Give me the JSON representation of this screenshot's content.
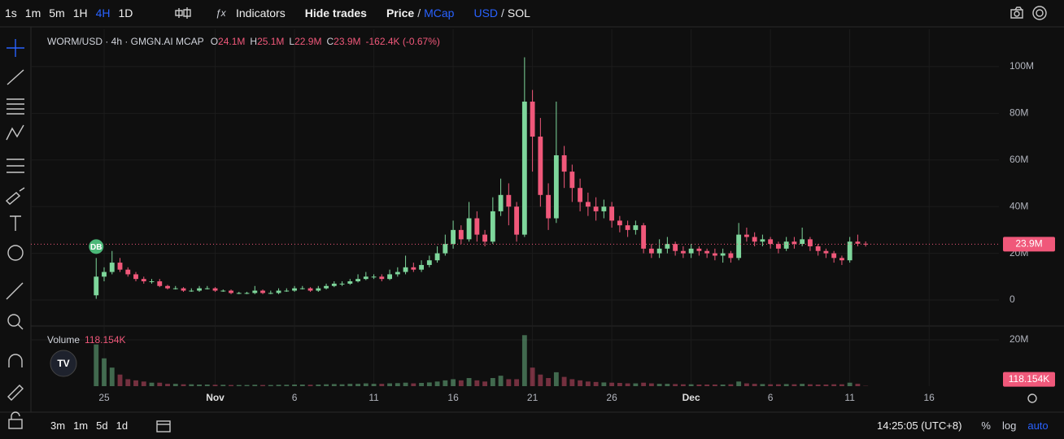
{
  "toolbar": {
    "intervals": [
      "1s",
      "1m",
      "5m",
      "1H",
      "4H",
      "1D"
    ],
    "indicators": "Indicators",
    "hide_trades": "Hide trades",
    "price": "Price",
    "slash": "/",
    "mcap": "MCap",
    "usd": "USD",
    "sol": "SOL"
  },
  "bottom_bar": {
    "ranges": [
      "3m",
      "1m",
      "5d",
      "1d"
    ],
    "time": "14:25:05 (UTC+8)",
    "percent": "%",
    "log": "log",
    "auto": "auto"
  },
  "chart_data": {
    "type": "candlestick",
    "title": "WORM/USD · 4h · GMGN.AI MCAP",
    "legend": {
      "o": "O",
      "open": "24.1M",
      "h": "H",
      "high": "25.1M",
      "l": "L",
      "low": "22.9M",
      "c": "C",
      "close": "23.9M",
      "change": "-162.4K (-0.67%)"
    },
    "marker": "DB",
    "up_color": "#7ed69b",
    "down_color": "#f0587a",
    "open": [
      2,
      10,
      12,
      16,
      13,
      11,
      9,
      8,
      8,
      6,
      5,
      5,
      4,
      4,
      5,
      5,
      4,
      4,
      3,
      3,
      3,
      4,
      3,
      3,
      4,
      4,
      5,
      5,
      4,
      5,
      6,
      7,
      7,
      8,
      9,
      10,
      10,
      9,
      11,
      12,
      14,
      13,
      15,
      17,
      20,
      24,
      30,
      26,
      35,
      28,
      25,
      38,
      45,
      40,
      28,
      85,
      70,
      45,
      35,
      62,
      55,
      48,
      42,
      40,
      38,
      40,
      34,
      32,
      30,
      32,
      22,
      20,
      22,
      24,
      21,
      20,
      22,
      21,
      20,
      19,
      20,
      18,
      28,
      27,
      25,
      26,
      24,
      22,
      25,
      24,
      26,
      23,
      21,
      20,
      18,
      17,
      25,
      24.1
    ],
    "high": [
      18,
      14,
      21,
      18,
      14,
      12,
      10,
      9,
      9,
      6.5,
      6,
      5.5,
      5,
      6,
      6,
      5.5,
      4.5,
      4.5,
      3.5,
      3.5,
      6,
      4.5,
      4,
      5,
      5,
      6,
      6,
      5.5,
      6,
      7,
      8,
      8,
      9,
      11,
      12,
      11,
      11,
      13,
      14,
      19,
      16,
      17,
      19,
      23,
      28,
      34,
      32,
      42,
      38,
      30,
      44,
      52,
      50,
      42,
      104,
      90,
      78,
      50,
      85,
      66,
      58,
      52,
      46,
      44,
      43,
      42,
      36,
      34,
      34,
      33,
      24,
      26,
      27,
      25,
      23,
      24,
      23,
      22,
      22,
      22,
      21,
      33,
      31,
      29,
      28,
      27,
      25,
      27,
      27,
      31,
      27,
      24,
      22,
      21,
      19,
      27,
      28,
      25.1
    ],
    "low": [
      0.5,
      8,
      11,
      12,
      10,
      8,
      7,
      7,
      5.5,
      4.5,
      4.5,
      3.5,
      3.5,
      3.5,
      4.5,
      3.5,
      3.5,
      2.5,
      2.5,
      2.5,
      2.5,
      2.5,
      2.5,
      2.5,
      3.5,
      3.5,
      4.5,
      3.5,
      3.5,
      4.5,
      5.5,
      6,
      6.5,
      7.5,
      8.5,
      9,
      8,
      8.5,
      10,
      11,
      12,
      12,
      14,
      16,
      19,
      22,
      24,
      25,
      25,
      23,
      24,
      36,
      32,
      25,
      27,
      55,
      40,
      30,
      33,
      48,
      42,
      38,
      36,
      34,
      35,
      31,
      29,
      27,
      28,
      20,
      18,
      18,
      20,
      19,
      18,
      18,
      19,
      18,
      17,
      16,
      16,
      17,
      25,
      23,
      23,
      22,
      20,
      21,
      22,
      23,
      21,
      19,
      18,
      16,
      15,
      16,
      23,
      22.9
    ],
    "close": [
      10,
      12,
      16,
      13,
      11,
      9,
      8,
      8,
      6,
      5,
      5,
      4,
      4,
      5,
      5,
      4,
      4,
      3,
      3,
      3,
      4,
      3,
      3,
      4,
      4,
      5,
      5,
      4,
      5,
      6,
      7,
      7,
      8,
      9,
      10,
      10,
      9,
      11,
      12,
      14,
      13,
      15,
      17,
      20,
      24,
      30,
      26,
      35,
      28,
      25,
      38,
      45,
      40,
      28,
      85,
      70,
      45,
      35,
      62,
      55,
      48,
      42,
      40,
      38,
      40,
      34,
      32,
      30,
      32,
      22,
      20,
      22,
      24,
      21,
      20,
      22,
      21,
      20,
      19,
      20,
      18,
      28,
      27,
      25,
      26,
      24,
      22,
      25,
      24,
      26,
      23,
      21,
      20,
      18,
      17,
      25,
      24.1,
      23.9
    ],
    "last_price": 23.9,
    "last_price_label": "23.9M",
    "ylim": [
      -10.8,
      116
    ],
    "yticks": [
      0,
      {
        "value": 20,
        "label": "20M"
      },
      {
        "value": 40,
        "label": "40M"
      },
      {
        "value": 60,
        "label": "60M"
      },
      {
        "value": 80,
        "label": "80M"
      },
      {
        "value": 100,
        "label": "100M"
      }
    ],
    "xlim": [
      -8.23,
      113.8
    ],
    "xticks": [
      {
        "value": 1,
        "label": "25"
      },
      {
        "value": 15,
        "label": "Nov"
      },
      {
        "value": 25,
        "label": "6"
      },
      {
        "value": 35,
        "label": "11"
      },
      {
        "value": 45,
        "label": "16"
      },
      {
        "value": 55,
        "label": "21"
      },
      {
        "value": 65,
        "label": "26"
      },
      {
        "value": 75,
        "label": "Dec"
      },
      {
        "value": 85,
        "label": "6"
      },
      {
        "value": 95,
        "label": "11"
      },
      {
        "value": 105,
        "label": "16"
      }
    ],
    "volume": {
      "title": "Volume",
      "last_label": "118.154K",
      "ylim": [
        0,
        24.9
      ],
      "yticks": [
        {
          "value": 20,
          "label": "20M"
        }
      ],
      "values": [
        18,
        12,
        8,
        5,
        3,
        2.5,
        2,
        1.5,
        1.5,
        1,
        1,
        0.8,
        0.8,
        0.7,
        0.7,
        0.6,
        0.6,
        0.5,
        0.5,
        0.5,
        0.6,
        0.5,
        0.5,
        0.6,
        0.6,
        0.7,
        0.7,
        0.6,
        0.7,
        0.8,
        0.9,
        0.8,
        1,
        1,
        1.2,
        1,
        1,
        1.2,
        1.3,
        1.5,
        1.2,
        1.4,
        1.6,
        2,
        2.5,
        3,
        2.5,
        3.5,
        2.5,
        2,
        3.5,
        4.5,
        3,
        3,
        22,
        8,
        5,
        3.5,
        6,
        4,
        3,
        2.5,
        2,
        1.8,
        1.6,
        1.5,
        1.4,
        1.2,
        1.2,
        1.5,
        1.2,
        1,
        1,
        0.9,
        0.8,
        0.8,
        0.7,
        0.7,
        0.7,
        0.7,
        0.8,
        2,
        1.2,
        1,
        0.9,
        0.8,
        0.8,
        0.9,
        0.8,
        1,
        0.8,
        0.7,
        0.7,
        0.8,
        0.8,
        1.5,
        1,
        0.118154
      ]
    }
  }
}
